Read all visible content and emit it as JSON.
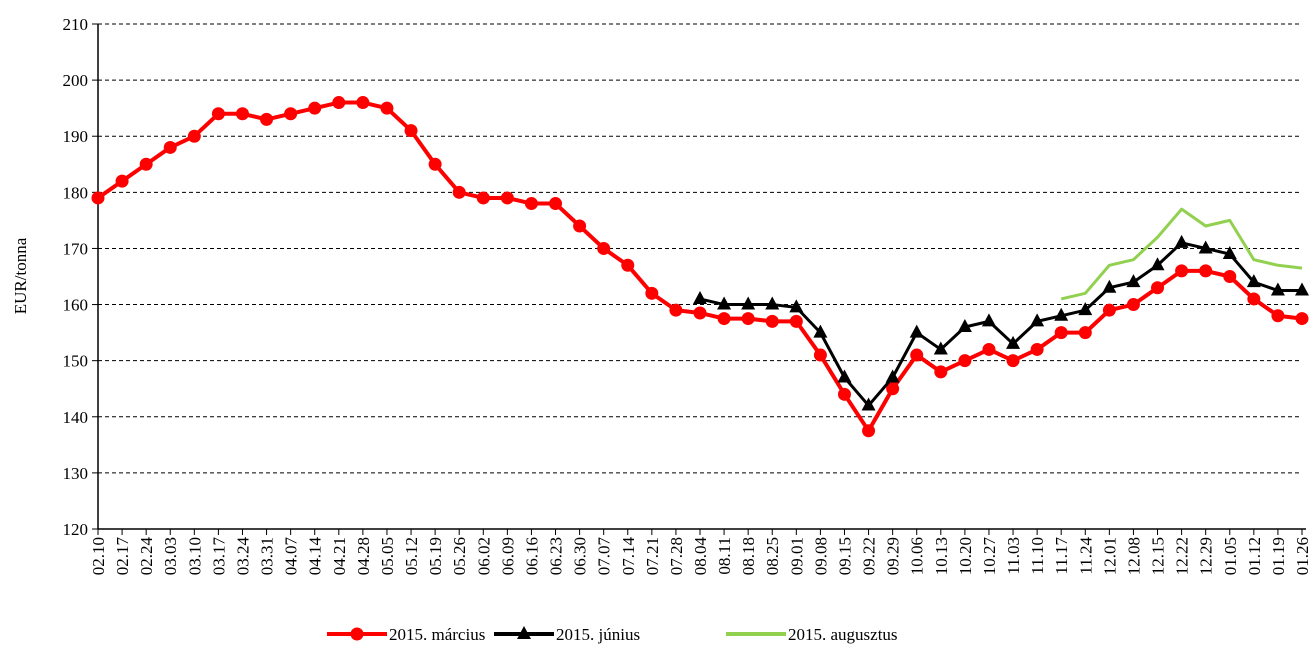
{
  "chart_data": {
    "type": "line",
    "y_label": "EUR/tonna",
    "categories": [
      "02.10",
      "02.17",
      "02.24",
      "03.03",
      "03.10",
      "03.17",
      "03.24",
      "03.31",
      "04.07",
      "04.14",
      "04.21",
      "04.28",
      "05.05",
      "05.12",
      "05.19",
      "05.26",
      "06.02",
      "06.09",
      "06.16",
      "06.23",
      "06.30",
      "07.07",
      "07.14",
      "07.21",
      "07.28",
      "08.04",
      "08.11",
      "08.18",
      "08.25",
      "09.01",
      "09.08",
      "09.15",
      "09.22",
      "09.29",
      "10.06",
      "10.13",
      "10.20",
      "10.27",
      "11.03",
      "11.10",
      "11.17",
      "11.24",
      "12.01",
      "12.08",
      "12.15",
      "12.22",
      "12.29",
      "01.05",
      "01.12",
      "01.19",
      "01.26"
    ],
    "series": [
      {
        "name": "2015. március",
        "color": "#ff0000",
        "marker": "circle",
        "values": [
          179,
          182,
          185,
          188,
          190,
          194,
          194,
          193,
          194,
          195,
          196,
          196,
          195,
          191,
          185,
          180,
          179,
          179,
          178,
          178,
          174,
          170,
          167,
          162,
          159,
          158.5,
          157.5,
          157.5,
          157,
          157,
          151,
          144,
          137.5,
          145,
          151,
          148,
          150,
          152,
          150,
          152,
          155,
          155,
          159,
          160,
          163,
          166,
          166,
          165,
          161,
          158,
          157.5
        ]
      },
      {
        "name": "2015. június",
        "color": "#000000",
        "marker": "triangle",
        "values": [
          null,
          null,
          null,
          null,
          null,
          null,
          null,
          null,
          null,
          null,
          null,
          null,
          null,
          null,
          null,
          null,
          null,
          null,
          null,
          null,
          null,
          null,
          null,
          null,
          null,
          161,
          160,
          160,
          160,
          159.5,
          155,
          147,
          142,
          147,
          155,
          152,
          156,
          157,
          153,
          157,
          158,
          159,
          163,
          164,
          167,
          171,
          170,
          169,
          164,
          162.5,
          162.5
        ]
      },
      {
        "name": "2015. augusztus",
        "color": "#92d050",
        "marker": "none",
        "values": [
          null,
          null,
          null,
          null,
          null,
          null,
          null,
          null,
          null,
          null,
          null,
          null,
          null,
          null,
          null,
          null,
          null,
          null,
          null,
          null,
          null,
          null,
          null,
          null,
          null,
          null,
          null,
          null,
          null,
          null,
          null,
          null,
          null,
          null,
          null,
          null,
          null,
          null,
          null,
          null,
          161,
          162,
          167,
          168,
          172,
          177,
          174,
          175,
          168,
          167,
          166.5
        ]
      }
    ],
    "ylim": [
      120,
      210
    ],
    "yticks": [
      120,
      130,
      140,
      150,
      160,
      170,
      180,
      190,
      200,
      210
    ],
    "grid": true,
    "legend": "bottom"
  }
}
